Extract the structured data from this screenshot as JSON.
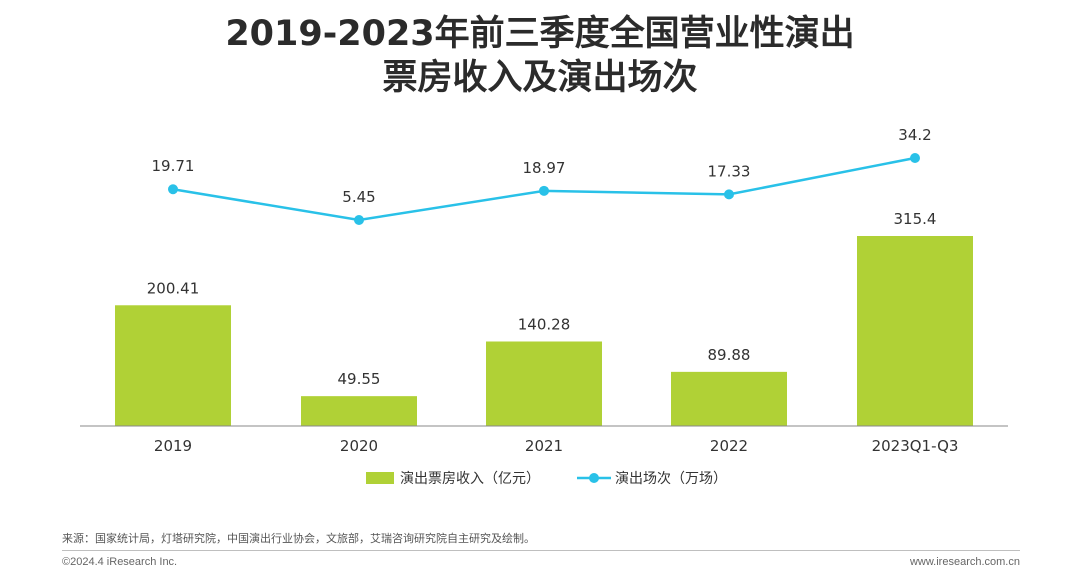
{
  "title_line1": "2019-2023年前三季度全国营业性演出",
  "title_line2": "票房收入及演出场次",
  "chart_data": {
    "type": "bar",
    "categories": [
      "2019",
      "2020",
      "2021",
      "2022",
      "2023Q1-Q3"
    ],
    "series": [
      {
        "name": "演出票房收入（亿元）",
        "type": "bar",
        "color": "#b0d136",
        "values": [
          200.41,
          49.55,
          140.28,
          89.88,
          315.4
        ],
        "labels": [
          "200.41",
          "49.55",
          "140.28",
          "89.88",
          "315.4"
        ]
      },
      {
        "name": "演出场次（万场）",
        "type": "line",
        "color": "#29c1e8",
        "values": [
          19.71,
          5.45,
          18.97,
          17.33,
          34.2
        ],
        "labels": [
          "19.71",
          "5.45",
          "18.97",
          "17.33",
          "34.2"
        ]
      }
    ],
    "legend_position": "bottom"
  },
  "source": "来源：国家统计局，灯塔研究院，中国演出行业协会，文旅部，艾瑞咨询研究院自主研究及绘制。",
  "footer_left": "©2024.4 iResearch Inc.",
  "footer_right": "www.iresearch.com.cn"
}
